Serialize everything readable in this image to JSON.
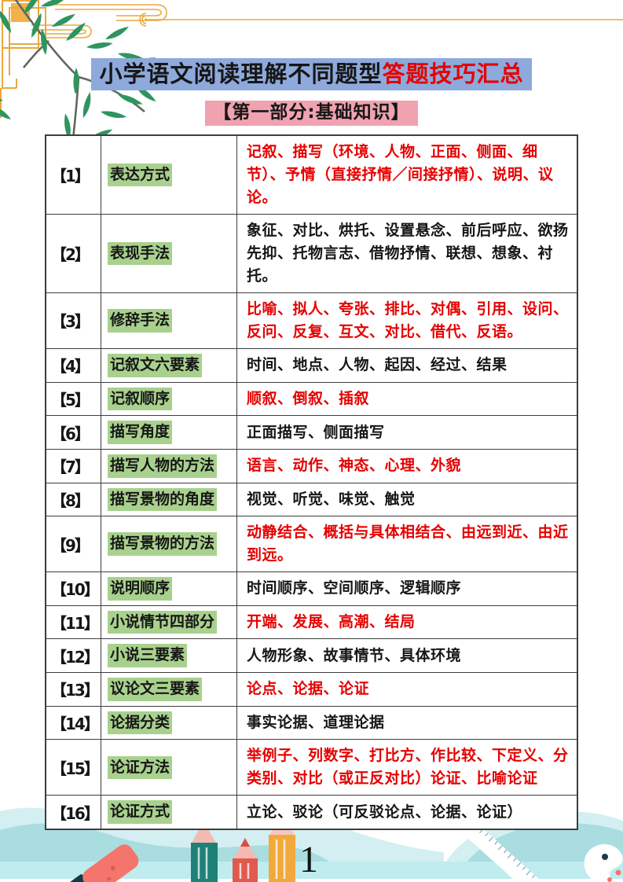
{
  "header": {
    "title_black": "小学语文阅读理解不同题型",
    "title_red": "答题技巧汇总",
    "subtitle": "【第一部分:基础知识】"
  },
  "colors": {
    "title_highlight": "#8ea9db",
    "subtitle_highlight": "#f0a2b0",
    "term_highlight_green": "#a9d18e",
    "red_text": "#e60000",
    "black_text": "#161616",
    "gold_ornament": "#eaa83e",
    "bamboo_green": "#2e9560",
    "wave_light": "#d4eff1",
    "wave_mid": "#a9dde0",
    "wave_strip": "#bfecee"
  },
  "decorations": {
    "top_left": [
      "gold-lattice-icon",
      "cloud-line-icon",
      "bamboo-branch-icon"
    ],
    "bottom": [
      "eraser-icon",
      "pencil-icon",
      "ruler-icon",
      "palette-icon"
    ]
  },
  "table": {
    "rows": [
      {
        "num": "【1】",
        "term": "表达方式",
        "content": "记叙、描写（环境、人物、正面、侧面、细节）、予情（直接抒情／间接抒情）、说明、议论。",
        "content_color": "red"
      },
      {
        "num": "【2】",
        "term": "表现手法",
        "content": "象征、对比、烘托、设置悬念、前后呼应、欲扬先抑、托物言志、借物抒情、联想、想象、衬托。",
        "content_color": "black"
      },
      {
        "num": "【3】",
        "term": "修辞手法",
        "content": "比喻、拟人、夸张、排比、对偶、引用、设问、反问、反复、互文、对比、借代、反语。",
        "content_color": "red"
      },
      {
        "num": "【4】",
        "term": "记叙文六要素",
        "content": "时间、地点、人物、起因、经过、结果",
        "content_color": "black"
      },
      {
        "num": "【5】",
        "term": "记叙顺序",
        "content": "顺叙、倒叙、插叙",
        "content_color": "red"
      },
      {
        "num": "【6】",
        "term": "描写角度",
        "content": "正面描写、侧面描写",
        "content_color": "black"
      },
      {
        "num": "【7】",
        "term": "描写人物的方法",
        "content": "语言、动作、神态、心理、外貌",
        "content_color": "red"
      },
      {
        "num": "【8】",
        "term": "描写景物的角度",
        "content": "视觉、听觉、味觉、触觉",
        "content_color": "black"
      },
      {
        "num": "【9】",
        "term": "描写景物的方法",
        "content": "动静结合、概括与具体相结合、由远到近、由近到远。",
        "content_color": "red"
      },
      {
        "num": "【10】",
        "term": "说明顺序",
        "content": "时间顺序、空间顺序、逻辑顺序",
        "content_color": "black"
      },
      {
        "num": "【11】",
        "term": "小说情节四部分",
        "content": "开端、发展、高潮、结局",
        "content_color": "red"
      },
      {
        "num": "【12】",
        "term": "小说三要素",
        "content": "人物形象、故事情节、具体环境",
        "content_color": "black"
      },
      {
        "num": "【13】",
        "term": "议论文三要素",
        "content": "论点、论据、论证",
        "content_color": "red"
      },
      {
        "num": "【14】",
        "term": "论据分类",
        "content": "事实论据、道理论据",
        "content_color": "black"
      },
      {
        "num": "【15】",
        "term": "论证方法",
        "content": "举例子、列数字、打比方、作比较、下定义、分类别、对比（或正反对比）论证、比喻论证",
        "content_color": "red"
      },
      {
        "num": "【16】",
        "term": "论证方式",
        "content": "立论、驳论（可反驳论点、论据、论证）",
        "content_color": "black"
      }
    ]
  },
  "footer": {
    "page_number": "1"
  }
}
